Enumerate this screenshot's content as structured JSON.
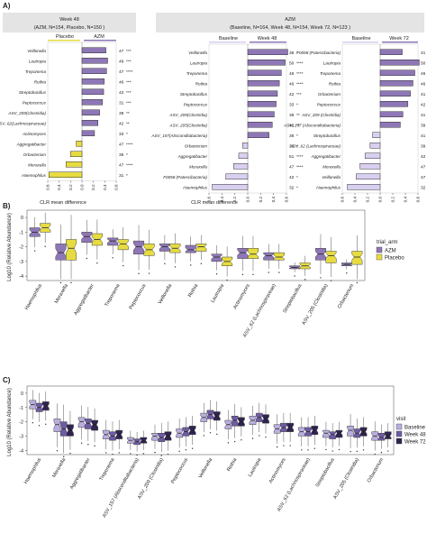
{
  "panels": {
    "A": {
      "label": "A)",
      "week48": {
        "header": "Week 48",
        "subheader": "(AZM, N=154, Placebo, N=150 )",
        "left_label": "Placebo",
        "right_label": "AZM",
        "taxa": [
          "Veillonella",
          "Lautropia",
          "Treponema",
          "Rothia",
          "Streptobacillus",
          "Peptococcus",
          "ASV_209(Clostridia)",
          "ASV_62(Lachnospiraceae)",
          "Actinomyces",
          "Aggregatibacter",
          "Orbacterium",
          "Moraxella",
          "Haemophilus"
        ],
        "values": [
          0.42,
          0.45,
          0.43,
          0.39,
          0.38,
          0.36,
          0.31,
          0.28,
          0.22,
          -0.1,
          -0.2,
          -0.28,
          -0.58
        ],
        "n": [
          "47",
          "49",
          "47",
          "46",
          "42",
          "31",
          "39",
          "42",
          "33",
          "47",
          "35",
          "47",
          "31"
        ],
        "sig": [
          "***",
          "***",
          "****",
          "***",
          "***",
          "***",
          "**",
          "**",
          "*",
          "****",
          "*",
          "****",
          "*"
        ]
      },
      "azm_header": "AZM",
      "azm_subheader": "(Baseline, N=164, Week 48, N=154, Week 72, N=123 )",
      "azm48": {
        "left_label": "Baseline",
        "right_label": "Week 48",
        "taxa": [
          "Veillonella",
          "Lautropia",
          "Treponema",
          "Rothia",
          "Streptobacillus",
          "Peptococcus",
          "ASV_209(Clostridia)",
          "ASV_205(Clostridia)",
          "ASV_157(Absconditabacteria)",
          "Orbacterium",
          "Aggregatibacter",
          "Moraxella",
          "F0058 (Patescibacteria)",
          "Haemophilus"
        ],
        "values": [
          0.62,
          0.58,
          0.52,
          0.49,
          0.46,
          0.44,
          0.41,
          0.38,
          0.33,
          -0.08,
          -0.14,
          -0.22,
          -0.34,
          -0.55
        ],
        "n": [
          "36",
          "50",
          "46",
          "46",
          "42",
          "33",
          "39",
          "48",
          "36",
          "36",
          "51",
          "47",
          "42",
          "32"
        ],
        "sig": [
          "*",
          "****",
          "****",
          "****",
          "***",
          "*",
          "**",
          "**",
          "*",
          "*",
          "****",
          "****",
          "*",
          "*"
        ]
      },
      "azm72": {
        "left_label": "Baseline",
        "right_label": "Week 72",
        "taxa": [
          "F0058 (Patescibacteria)",
          "Lautropia",
          "Treponema",
          "Rothia",
          "Orbacterium",
          "Peptococcus",
          "ASV_209 (Clostridia)",
          "ASV_157 (Absconditabacteria)",
          "Streptobacillus",
          "ASV_62 (Lachnospiraceae)",
          "Aggregatibacter",
          "Moraxella",
          "Veillonella",
          "Haemophilus"
        ],
        "values": [
          0.35,
          0.62,
          0.55,
          0.52,
          0.48,
          0.44,
          0.36,
          0.32,
          -0.12,
          -0.16,
          -0.24,
          -0.32,
          -0.38,
          -0.52
        ],
        "n": [
          "41",
          "50",
          "46",
          "46",
          "41",
          "42",
          "41",
          "39",
          "41",
          "39",
          "42",
          "47",
          "47",
          "32"
        ],
        "sig": [
          "*",
          "****",
          "***",
          "***",
          "**",
          "**",
          "**",
          "*",
          "*",
          "**",
          "**",
          "***",
          "**",
          "*"
        ]
      },
      "xlabel": "CLR mean difference",
      "ticks": [
        "0.6",
        "0.4",
        "0.2",
        "0.0",
        "0.2",
        "0.4",
        "0.6"
      ]
    },
    "B": {
      "label": "B)",
      "ylabel": "Log10 (Relative Abundance)",
      "yticks": [
        "0",
        "-1",
        "-2",
        "-3",
        "-4"
      ],
      "legend_title": "trial_arm",
      "legend": [
        {
          "name": "AZM",
          "color": "#8e77b6"
        },
        {
          "name": "Placebo",
          "color": "#e6dc41"
        }
      ],
      "taxa": [
        "Haemophilus",
        "Moraxella",
        "Aggregatibacter",
        "Treponema",
        "Peptococcus",
        "Veillonella",
        "Rothia",
        "Lautropia",
        "Actinomyces",
        "ASV_62 (Lachnospiraceae)",
        "Streptobacillus",
        "ASV_205 (Clostridia)",
        "Orbacterium"
      ]
    },
    "C": {
      "label": "C)",
      "ylabel": "Log10 (Relative Abundance)",
      "yticks": [
        "0",
        "-1",
        "-2",
        "-3",
        "-4"
      ],
      "legend_title": "visit",
      "legend": [
        {
          "name": "Baseline",
          "color": "#b9aede"
        },
        {
          "name": "Week 48",
          "color": "#6f5aa4"
        },
        {
          "name": "Week 72",
          "color": "#2f2350"
        }
      ],
      "taxa": [
        "Haemophilus",
        "Moraxella",
        "Aggregatibacter",
        "Treponema",
        "ASV_157 (Absconditabacteria)",
        "ASV_209 (Clostridia)",
        "Peptococcus",
        "Veillonella",
        "Rothia",
        "Lautropia",
        "Actinomyces",
        "ASV_62 (Lachnospiraceae)",
        "Streptobacillus",
        "ASV_205 (Clostridia)",
        "Orbacterium"
      ]
    }
  },
  "chart_data": [
    {
      "type": "bar",
      "title": "Week 48 (AZM, N=154, Placebo, N=150 )",
      "xlabel": "CLR mean difference",
      "categories": [
        "Veillonella",
        "Lautropia",
        "Treponema",
        "Rothia",
        "Streptobacillus",
        "Peptococcus",
        "ASV_209(Clostridia)",
        "ASV_62(Lachnospiraceae)",
        "Actinomyces",
        "Aggregatibacter",
        "Orbacterium",
        "Moraxella",
        "Haemophilus"
      ],
      "values": [
        0.42,
        0.45,
        0.43,
        0.39,
        0.38,
        0.36,
        0.31,
        0.28,
        0.22,
        -0.1,
        -0.2,
        -0.28,
        -0.58
      ],
      "xlim": [
        -0.6,
        0.6
      ]
    },
    {
      "type": "bar",
      "title": "AZM Baseline vs Week 48",
      "xlabel": "CLR mean difference",
      "categories": [
        "Veillonella",
        "Lautropia",
        "Treponema",
        "Rothia",
        "Streptobacillus",
        "Peptococcus",
        "ASV_209(Clostridia)",
        "ASV_205(Clostridia)",
        "ASV_157(Absconditabacteria)",
        "Orbacterium",
        "Aggregatibacter",
        "Moraxella",
        "F0058 (Patescibacteria)",
        "Haemophilus"
      ],
      "values": [
        0.62,
        0.58,
        0.52,
        0.49,
        0.46,
        0.44,
        0.41,
        0.38,
        0.33,
        -0.08,
        -0.14,
        -0.22,
        -0.34,
        -0.55
      ],
      "xlim": [
        -0.6,
        0.6
      ]
    },
    {
      "type": "bar",
      "title": "AZM Baseline vs Week 72",
      "xlabel": "CLR mean difference",
      "categories": [
        "F0058 (Patescibacteria)",
        "Lautropia",
        "Treponema",
        "Rothia",
        "Orbacterium",
        "Peptococcus",
        "ASV_209 (Clostridia)",
        "ASV_157 (Absconditabacteria)",
        "Streptobacillus",
        "ASV_62 (Lachnospiraceae)",
        "Aggregatibacter",
        "Moraxella",
        "Veillonella",
        "Haemophilus"
      ],
      "values": [
        0.35,
        0.62,
        0.55,
        0.52,
        0.48,
        0.44,
        0.36,
        0.32,
        -0.12,
        -0.16,
        -0.24,
        -0.32,
        -0.38,
        -0.52
      ],
      "xlim": [
        -0.6,
        0.6
      ]
    },
    {
      "type": "box",
      "ylabel": "Log10 (Relative Abundance)",
      "ylim": [
        -4.3,
        0.5
      ],
      "categories": [
        "Haemophilus",
        "Moraxella",
        "Aggregatibacter",
        "Treponema",
        "Peptococcus",
        "Veillonella",
        "Rothia",
        "Lautropia",
        "Actinomyces",
        "ASV_62 (Lachnospiraceae)",
        "Streptobacillus",
        "ASV_205 (Clostridia)",
        "Orbacterium"
      ],
      "series": [
        {
          "name": "AZM",
          "median": [
            -1.0,
            -2.4,
            -1.3,
            -1.6,
            -2.0,
            -2.0,
            -2.2,
            -2.7,
            -2.4,
            -2.6,
            -3.4,
            -2.5,
            -3.2
          ],
          "q1": [
            -1.3,
            -2.9,
            -1.7,
            -1.9,
            -2.5,
            -2.3,
            -2.4,
            -3.0,
            -2.8,
            -2.9,
            -3.5,
            -2.9,
            -3.3
          ],
          "q3": [
            -0.7,
            -1.8,
            -1.0,
            -1.4,
            -1.6,
            -1.8,
            -1.9,
            -2.5,
            -2.1,
            -2.4,
            -3.3,
            -2.1,
            -3.1
          ]
        },
        {
          "name": "Placebo",
          "median": [
            -0.7,
            -2.1,
            -1.5,
            -1.8,
            -2.2,
            -2.1,
            -2.0,
            -3.0,
            -2.5,
            -2.7,
            -3.3,
            -2.6,
            -2.7
          ],
          "q1": [
            -1.0,
            -2.9,
            -1.9,
            -2.2,
            -2.6,
            -2.4,
            -2.3,
            -3.3,
            -2.8,
            -2.9,
            -3.5,
            -3.1,
            -3.2
          ],
          "q3": [
            -0.4,
            -1.5,
            -1.1,
            -1.5,
            -1.8,
            -1.8,
            -1.8,
            -2.7,
            -2.1,
            -2.4,
            -3.1,
            -2.3,
            -2.3
          ]
        }
      ]
    },
    {
      "type": "box",
      "ylabel": "Log10 (Relative Abundance)",
      "ylim": [
        -4.3,
        0.5
      ],
      "categories": [
        "Haemophilus",
        "Moraxella",
        "Aggregatibacter",
        "Treponema",
        "ASV_157 (Absconditabacteria)",
        "ASV_209 (Clostridia)",
        "Peptococcus",
        "Veillonella",
        "Rothia",
        "Lautropia",
        "Actinomyces",
        "ASV_62 (Lachnospiraceae)",
        "Streptobacillus",
        "ASV_205 (Clostridia)",
        "Orbacterium"
      ],
      "series": [
        {
          "name": "Baseline",
          "median": [
            -0.8,
            -2.2,
            -2.0,
            -2.9,
            -3.3,
            -3.0,
            -2.8,
            -1.7,
            -2.2,
            -1.9,
            -2.5,
            -2.7,
            -2.8,
            -2.6,
            -3.0
          ],
          "q1": [
            -1.1,
            -2.7,
            -2.4,
            -3.2,
            -3.5,
            -3.3,
            -3.1,
            -2.0,
            -2.5,
            -2.2,
            -2.8,
            -3.0,
            -3.1,
            -3.0,
            -3.3
          ],
          "q3": [
            -0.5,
            -1.8,
            -1.7,
            -2.6,
            -3.1,
            -2.8,
            -2.5,
            -1.4,
            -1.9,
            -1.6,
            -2.2,
            -2.4,
            -2.6,
            -2.3,
            -2.7
          ]
        },
        {
          "name": "Week 48",
          "median": [
            -1.0,
            -2.5,
            -2.1,
            -3.0,
            -3.4,
            -3.1,
            -2.7,
            -1.5,
            -1.9,
            -1.7,
            -2.4,
            -2.7,
            -2.9,
            -2.8,
            -3.1
          ],
          "q1": [
            -1.3,
            -3.0,
            -2.5,
            -3.3,
            -3.6,
            -3.4,
            -3.0,
            -1.8,
            -2.3,
            -2.0,
            -2.7,
            -3.0,
            -3.2,
            -3.1,
            -3.3
          ],
          "q3": [
            -0.7,
            -2.0,
            -1.8,
            -2.7,
            -3.2,
            -2.8,
            -2.4,
            -1.2,
            -1.6,
            -1.4,
            -2.1,
            -2.4,
            -2.7,
            -2.5,
            -2.8
          ]
        },
        {
          "name": "Week 72",
          "median": [
            -0.9,
            -2.6,
            -2.2,
            -2.9,
            -3.3,
            -3.0,
            -2.6,
            -1.6,
            -2.0,
            -1.8,
            -2.4,
            -2.6,
            -2.8,
            -2.7,
            -3.0
          ],
          "q1": [
            -1.2,
            -3.0,
            -2.6,
            -3.2,
            -3.5,
            -3.3,
            -2.9,
            -1.9,
            -2.3,
            -2.1,
            -2.7,
            -2.9,
            -3.1,
            -3.0,
            -3.2
          ],
          "q3": [
            -0.6,
            -2.2,
            -1.9,
            -2.6,
            -3.1,
            -2.7,
            -2.3,
            -1.3,
            -1.7,
            -1.5,
            -2.1,
            -2.3,
            -2.6,
            -2.4,
            -2.7
          ]
        }
      ]
    }
  ]
}
